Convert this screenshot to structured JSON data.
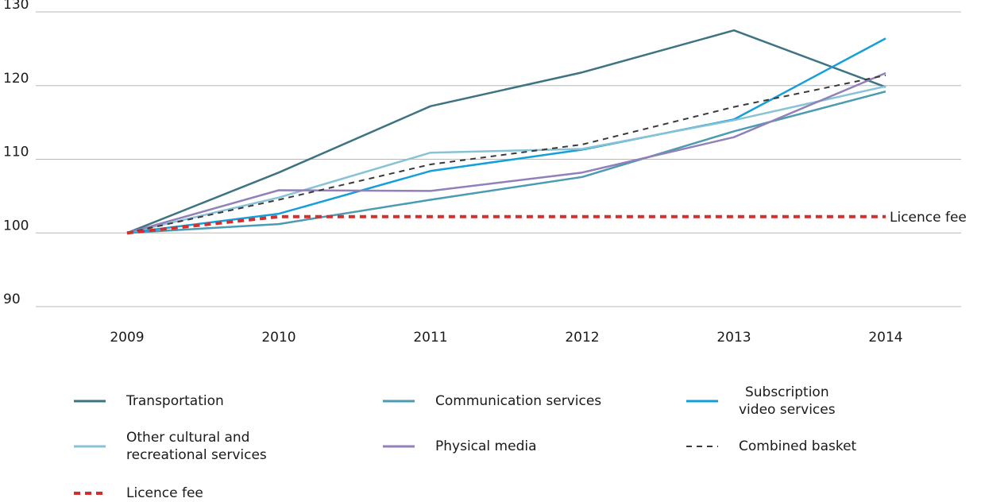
{
  "chart_data": {
    "type": "line",
    "x": [
      "2009",
      "2010",
      "2011",
      "2012",
      "2013",
      "2014"
    ],
    "ylim": [
      90,
      130
    ],
    "yticks": [
      "90",
      "100",
      "110",
      "120",
      "130"
    ],
    "grid": true,
    "legend_position": "bottom",
    "series": [
      {
        "name": "Transportation",
        "color": "#3e7381",
        "dash": "solid",
        "values": [
          100,
          108.2,
          117.2,
          121.8,
          127.5,
          119.8
        ]
      },
      {
        "name": "Communication services",
        "color": "#4b9bb3",
        "dash": "solid",
        "values": [
          100,
          101.2,
          104.5,
          107.6,
          113.8,
          119.2
        ]
      },
      {
        "name": "Subscription\nvideo services",
        "color": "#149fda",
        "dash": "solid",
        "values": [
          100,
          102.6,
          108.4,
          111.3,
          115.4,
          126.4
        ]
      },
      {
        "name": "Other cultural and\nrecreational services",
        "color": "#88c2d6",
        "dash": "solid",
        "values": [
          100,
          104.8,
          110.9,
          111.4,
          115.3,
          119.9
        ]
      },
      {
        "name": "Physical media",
        "color": "#9180ba",
        "dash": "solid",
        "values": [
          100,
          105.8,
          105.7,
          108.2,
          113.0,
          121.7
        ]
      },
      {
        "name": "Combined basket",
        "color": "#3a3a3a",
        "dash": "dashed",
        "values": [
          100,
          104.5,
          109.3,
          112.0,
          117.1,
          121.4
        ]
      },
      {
        "name": "Licence fee",
        "color": "#d42e2e",
        "dash": "dashed-thick",
        "values": [
          100,
          102.2,
          102.2,
          102.2,
          102.2,
          102.2
        ]
      }
    ],
    "annotations": [
      {
        "text": "Licence fee",
        "series": "Licence fee"
      }
    ]
  }
}
